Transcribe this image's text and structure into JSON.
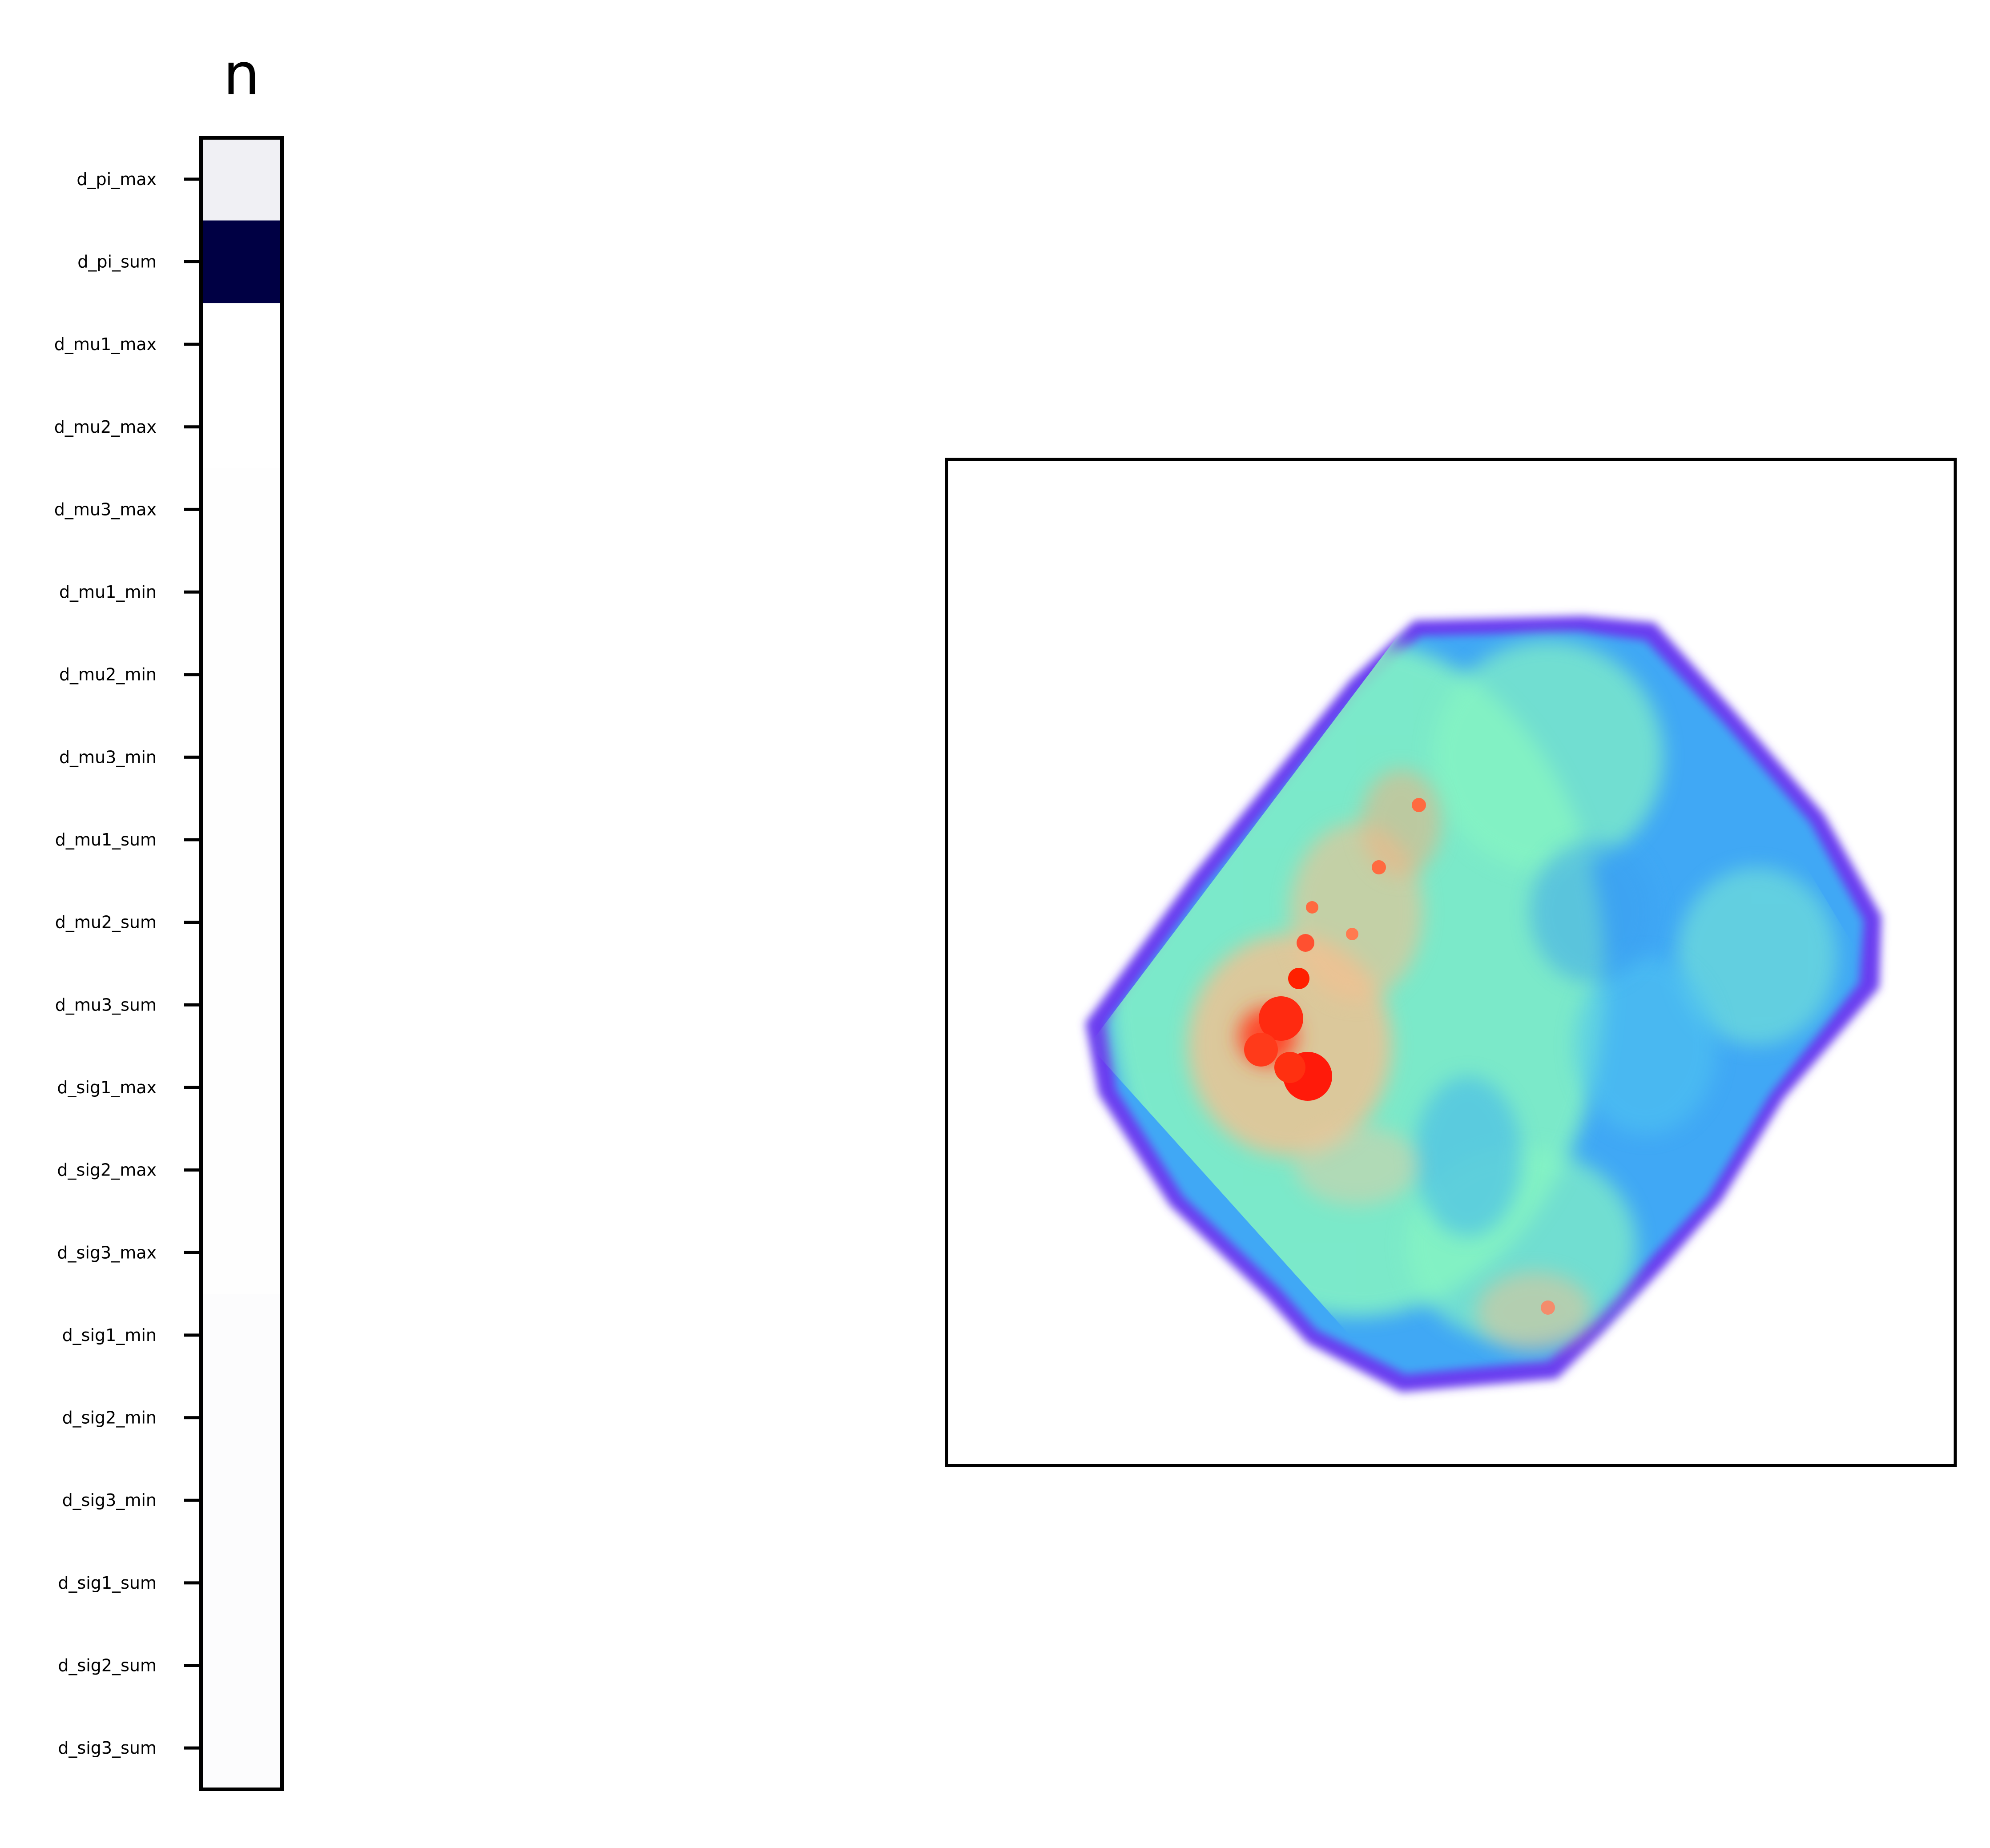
{
  "chart_data": [
    {
      "type": "heatmap",
      "title": "n",
      "xlabel": "",
      "ylabel": "",
      "colormap": "white-to-navy",
      "colormap_endpoints": [
        "#ffffff",
        "#000044"
      ],
      "vlim": [
        0,
        1
      ],
      "rows": [
        "d_pi_max",
        "d_pi_sum",
        "d_mu1_max",
        "d_mu2_max",
        "d_mu3_max",
        "d_mu1_min",
        "d_mu2_min",
        "d_mu3_min",
        "d_mu1_sum",
        "d_mu2_sum",
        "d_mu3_sum",
        "d_sig1_max",
        "d_sig2_max",
        "d_sig3_max",
        "d_sig1_min",
        "d_sig2_min",
        "d_sig3_min",
        "d_sig1_sum",
        "d_sig2_sum",
        "d_sig3_sum"
      ],
      "values": [
        0.06,
        1.0,
        0.0,
        0.0,
        0.005,
        0.005,
        0.005,
        0.005,
        0.005,
        0.005,
        0.005,
        0.005,
        0.005,
        0.005,
        0.01,
        0.01,
        0.01,
        0.01,
        0.01,
        0.01
      ],
      "grid": false,
      "legend": "none"
    },
    {
      "type": "heatmap",
      "title": "",
      "xlabel": "",
      "ylabel": "",
      "colormap": "rainbow",
      "colors": {
        "low": "#6a3cf0",
        "mid_low": "#3fa8f5",
        "mid": "#86f5c2",
        "mid_high": "#f4c090",
        "high": "#ff0000"
      },
      "description_shape": "rotated-square density map",
      "grid": false,
      "axes_ticks": false,
      "legend": "none"
    }
  ]
}
